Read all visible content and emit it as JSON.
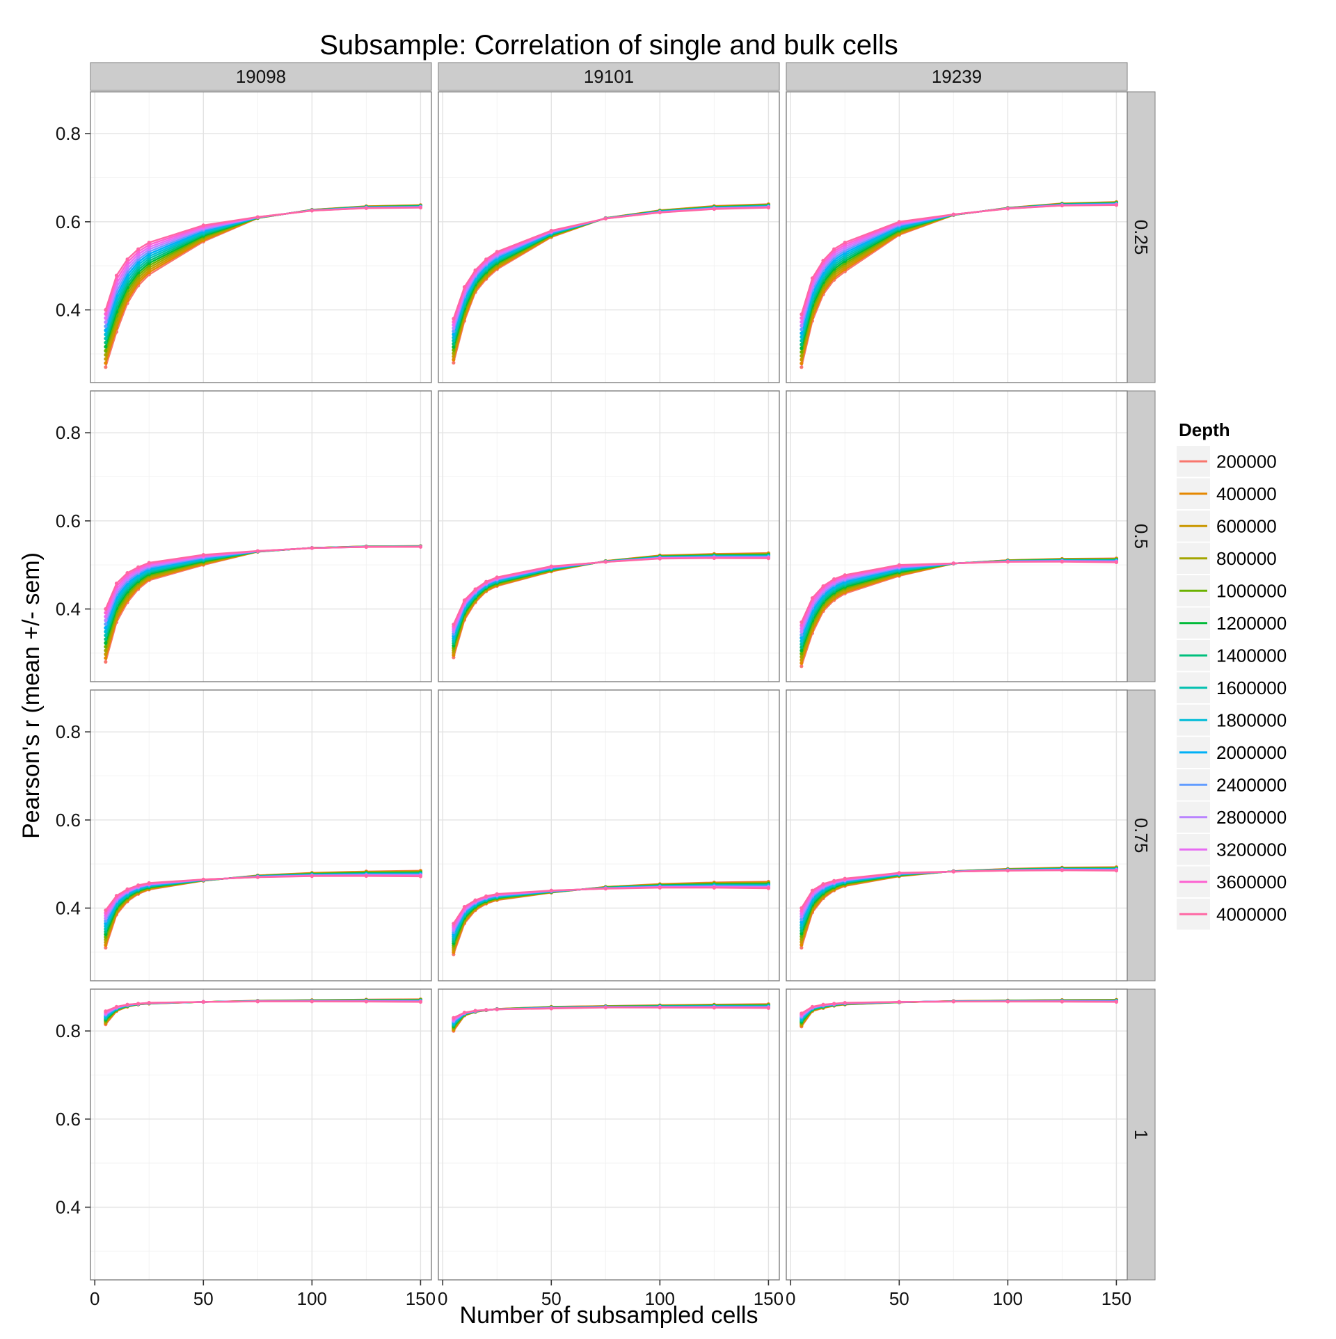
{
  "chart_data": {
    "type": "line",
    "title": "Subsample: Correlation of single and bulk cells",
    "xlabel": "Number of subsampled cells",
    "ylabel": "Pearson's r (mean +/- sem)",
    "xlim": [
      -2,
      155
    ],
    "ylim": [
      0.235,
      0.895
    ],
    "x_ticks": [
      0,
      50,
      100,
      150
    ],
    "y_ticks": [
      0.4,
      0.6,
      0.8
    ],
    "grid": true,
    "legend_position": "right",
    "legend_title": "Depth",
    "column_facets": [
      "19098",
      "19101",
      "19239"
    ],
    "row_facets": [
      "0.25",
      "0.5",
      "0.75",
      "1"
    ],
    "x": [
      5,
      10,
      15,
      20,
      25,
      50,
      75,
      100,
      125,
      150
    ],
    "series": [
      {
        "name": "200000",
        "color": "#F8766D"
      },
      {
        "name": "400000",
        "color": "#E58700"
      },
      {
        "name": "600000",
        "color": "#C99800"
      },
      {
        "name": "800000",
        "color": "#A3A500"
      },
      {
        "name": "1000000",
        "color": "#6BB100"
      },
      {
        "name": "1200000",
        "color": "#00BA38"
      },
      {
        "name": "1400000",
        "color": "#00BF7D"
      },
      {
        "name": "1600000",
        "color": "#00C0AF"
      },
      {
        "name": "1800000",
        "color": "#00BCD8"
      },
      {
        "name": "2000000",
        "color": "#00B0F6"
      },
      {
        "name": "2400000",
        "color": "#619CFF"
      },
      {
        "name": "2800000",
        "color": "#B983FF"
      },
      {
        "name": "3200000",
        "color": "#E76BF3"
      },
      {
        "name": "3600000",
        "color": "#FD61D1"
      },
      {
        "name": "4000000",
        "color": "#FF67A4"
      }
    ],
    "panels": [
      {
        "row": "0.25",
        "col": "19098",
        "lowest": [
          0.27,
          0.35,
          0.415,
          0.455,
          0.48,
          0.555,
          0.592,
          0.615,
          0.628,
          0.638
        ],
        "highest": [
          0.4,
          0.478,
          0.515,
          0.538,
          0.553,
          0.592,
          0.61,
          0.62,
          0.627,
          0.633
        ],
        "end_order": [
          0.638,
          0.632
        ]
      },
      {
        "row": "0.25",
        "col": "19101",
        "lowest": [
          0.28,
          0.375,
          0.44,
          0.47,
          0.492,
          0.565,
          0.597,
          0.615,
          0.628,
          0.64
        ],
        "highest": [
          0.38,
          0.452,
          0.49,
          0.515,
          0.532,
          0.58,
          0.6,
          0.607,
          0.615,
          0.622
        ],
        "end_order": [
          0.64,
          0.632
        ]
      },
      {
        "row": "0.25",
        "col": "19239",
        "lowest": [
          0.27,
          0.375,
          0.435,
          0.468,
          0.487,
          0.57,
          0.6,
          0.615,
          0.63,
          0.645
        ],
        "highest": [
          0.39,
          0.472,
          0.512,
          0.538,
          0.553,
          0.6,
          0.615,
          0.625,
          0.635,
          0.638
        ],
        "end_order": [
          0.645,
          0.638
        ]
      },
      {
        "row": "0.5",
        "col": "19098",
        "lowest": [
          0.28,
          0.37,
          0.415,
          0.445,
          0.465,
          0.5,
          0.522,
          0.533,
          0.54,
          0.543
        ],
        "highest": [
          0.4,
          0.458,
          0.482,
          0.495,
          0.505,
          0.523,
          0.532,
          0.537,
          0.54,
          0.542
        ],
        "end_order": [
          0.543,
          0.541
        ]
      },
      {
        "row": "0.5",
        "col": "19101",
        "lowest": [
          0.29,
          0.375,
          0.415,
          0.44,
          0.452,
          0.485,
          0.502,
          0.52,
          0.523,
          0.527
        ],
        "highest": [
          0.365,
          0.42,
          0.445,
          0.462,
          0.472,
          0.497,
          0.505,
          0.51,
          0.513,
          0.517
        ],
        "end_order": [
          0.527,
          0.515
        ]
      },
      {
        "row": "0.5",
        "col": "19239",
        "lowest": [
          0.27,
          0.345,
          0.395,
          0.42,
          0.435,
          0.475,
          0.495,
          0.505,
          0.51,
          0.515
        ],
        "highest": [
          0.37,
          0.425,
          0.452,
          0.468,
          0.477,
          0.5,
          0.507,
          0.51,
          0.512,
          0.515
        ],
        "end_order": [
          0.515,
          0.506
        ]
      },
      {
        "row": "0.75",
        "col": "19098",
        "lowest": [
          0.31,
          0.385,
          0.415,
          0.432,
          0.442,
          0.462,
          0.472,
          0.478,
          0.482,
          0.485
        ],
        "highest": [
          0.395,
          0.428,
          0.443,
          0.452,
          0.457,
          0.465,
          0.468,
          0.47,
          0.471,
          0.472
        ],
        "end_order": [
          0.485,
          0.472
        ]
      },
      {
        "row": "0.75",
        "col": "19101",
        "lowest": [
          0.295,
          0.365,
          0.395,
          0.41,
          0.418,
          0.435,
          0.445,
          0.452,
          0.457,
          0.46
        ],
        "highest": [
          0.365,
          0.403,
          0.418,
          0.427,
          0.432,
          0.44,
          0.443,
          0.445,
          0.446,
          0.447
        ],
        "end_order": [
          0.46,
          0.445
        ]
      },
      {
        "row": "0.75",
        "col": "19239",
        "lowest": [
          0.31,
          0.39,
          0.422,
          0.44,
          0.45,
          0.472,
          0.48,
          0.485,
          0.49,
          0.493
        ],
        "highest": [
          0.4,
          0.44,
          0.455,
          0.462,
          0.467,
          0.48,
          0.483,
          0.485,
          0.487,
          0.488
        ],
        "end_order": [
          0.493,
          0.485
        ]
      },
      {
        "row": "1",
        "col": "19098",
        "lowest": [
          0.815,
          0.845,
          0.855,
          0.86,
          0.862,
          0.866,
          0.868,
          0.869,
          0.87,
          0.871
        ],
        "highest": [
          0.845,
          0.855,
          0.86,
          0.862,
          0.864,
          0.866,
          0.867,
          0.867,
          0.868,
          0.868
        ],
        "end_order": [
          0.872,
          0.866
        ]
      },
      {
        "row": "1",
        "col": "19101",
        "lowest": [
          0.8,
          0.835,
          0.843,
          0.847,
          0.85,
          0.855,
          0.857,
          0.858,
          0.859,
          0.86
        ],
        "highest": [
          0.83,
          0.842,
          0.846,
          0.848,
          0.849,
          0.851,
          0.852,
          0.852,
          0.853,
          0.853
        ],
        "end_order": [
          0.861,
          0.852
        ]
      },
      {
        "row": "1",
        "col": "19239",
        "lowest": [
          0.81,
          0.845,
          0.852,
          0.857,
          0.86,
          0.865,
          0.867,
          0.868,
          0.869,
          0.87
        ],
        "highest": [
          0.84,
          0.855,
          0.86,
          0.862,
          0.864,
          0.866,
          0.867,
          0.867,
          0.868,
          0.868
        ],
        "end_order": [
          0.871,
          0.866
        ]
      }
    ]
  }
}
